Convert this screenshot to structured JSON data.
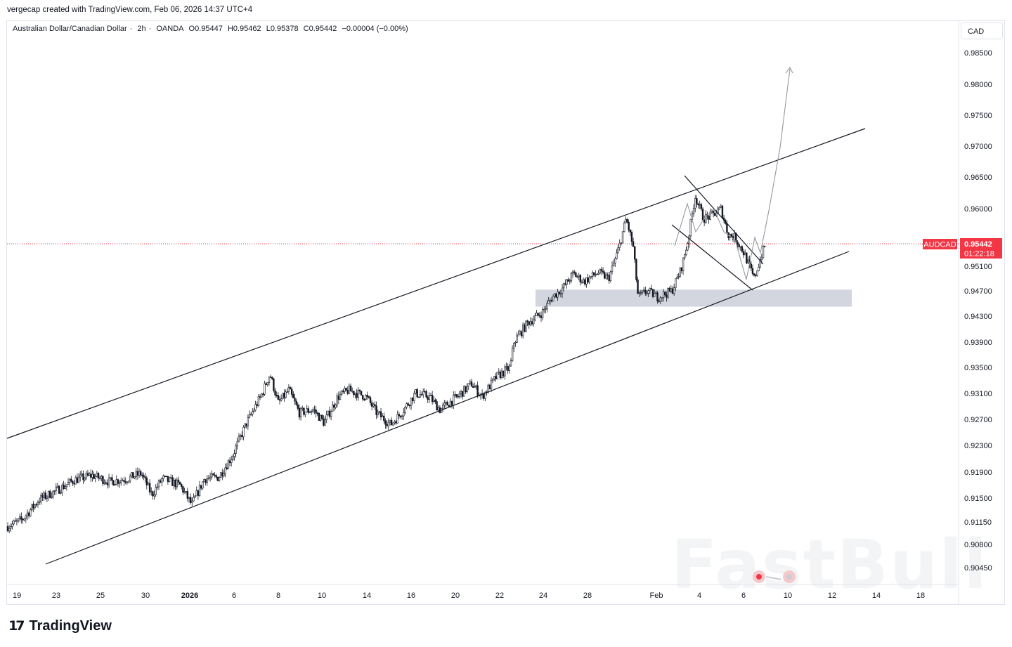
{
  "header": {
    "credit": "vergecap created with TradingView.com, Feb 06, 2026 14:37 UTC+4"
  },
  "legend": {
    "symbol": "Australian Dollar/Canadian Dollar",
    "interval": "2h",
    "broker": "OANDA",
    "open": "O0.95447",
    "high": "H0.95462",
    "low": "L0.95378",
    "close": "C0.95442",
    "change": "−0.00004 (−0.00%)"
  },
  "currency_button": "CAD",
  "price_tag": {
    "symbol": "AUDCAD",
    "price": "0.95442",
    "countdown": "01:22:18",
    "color": "#f23645"
  },
  "footer": {
    "brand": "TradingView"
  },
  "watermark": "FastBull",
  "chart_data": {
    "type": "candlestick",
    "title": "Australian Dollar/Canadian Dollar · 2h · OANDA",
    "y_axis_ticks": [
      0.985,
      0.98,
      0.975,
      0.97,
      0.965,
      0.96,
      0.951,
      0.947,
      0.943,
      0.939,
      0.935,
      0.931,
      0.927,
      0.923,
      0.919,
      0.915,
      0.9115,
      0.908,
      0.9045
    ],
    "y_axis_labels": [
      "0.98500",
      "0.98000",
      "0.97500",
      "0.97000",
      "0.96500",
      "0.96000",
      "0.95100",
      "0.94700",
      "0.94300",
      "0.93900",
      "0.93500",
      "0.93100",
      "0.92700",
      "0.92300",
      "0.91900",
      "0.91500",
      "0.91150",
      "0.90800",
      "0.90450"
    ],
    "x_axis_labels": [
      "19",
      "23",
      "25",
      "30",
      "2026",
      "6",
      "8",
      "10",
      "14",
      "16",
      "20",
      "22",
      "24",
      "28",
      "Feb",
      "4",
      "6",
      "10",
      "12",
      "14",
      "18"
    ],
    "current_price": 0.95442,
    "price_path": [
      [
        0,
        0.9108
      ],
      [
        20,
        0.9118
      ],
      [
        45,
        0.9148
      ],
      [
        70,
        0.9162
      ],
      [
        95,
        0.9178
      ],
      [
        120,
        0.9185
      ],
      [
        145,
        0.9175
      ],
      [
        170,
        0.918
      ],
      [
        190,
        0.9188
      ],
      [
        205,
        0.9155
      ],
      [
        220,
        0.918
      ],
      [
        245,
        0.917
      ],
      [
        262,
        0.914
      ],
      [
        280,
        0.918
      ],
      [
        300,
        0.9182
      ],
      [
        320,
        0.9215
      ],
      [
        340,
        0.9265
      ],
      [
        360,
        0.9305
      ],
      [
        373,
        0.934
      ],
      [
        385,
        0.9295
      ],
      [
        400,
        0.9315
      ],
      [
        415,
        0.928
      ],
      [
        435,
        0.9285
      ],
      [
        450,
        0.9265
      ],
      [
        470,
        0.9305
      ],
      [
        485,
        0.9315
      ],
      [
        510,
        0.9305
      ],
      [
        525,
        0.928
      ],
      [
        545,
        0.9262
      ],
      [
        560,
        0.928
      ],
      [
        580,
        0.931
      ],
      [
        600,
        0.9305
      ],
      [
        615,
        0.9285
      ],
      [
        640,
        0.9305
      ],
      [
        660,
        0.9325
      ],
      [
        675,
        0.9305
      ],
      [
        695,
        0.9335
      ],
      [
        715,
        0.935
      ],
      [
        720,
        0.939
      ],
      [
        740,
        0.942
      ],
      [
        760,
        0.9435
      ],
      [
        775,
        0.946
      ],
      [
        790,
        0.9475
      ],
      [
        805,
        0.9498
      ],
      [
        820,
        0.9485
      ],
      [
        840,
        0.95
      ],
      [
        855,
        0.949
      ],
      [
        870,
        0.954
      ],
      [
        880,
        0.9585
      ],
      [
        890,
        0.954
      ],
      [
        897,
        0.946
      ],
      [
        910,
        0.947
      ],
      [
        925,
        0.946
      ],
      [
        945,
        0.947
      ],
      [
        958,
        0.9505
      ],
      [
        968,
        0.955
      ],
      [
        978,
        0.962
      ],
      [
        990,
        0.9585
      ],
      [
        1000,
        0.9588
      ],
      [
        1015,
        0.96
      ],
      [
        1025,
        0.956
      ],
      [
        1035,
        0.9555
      ],
      [
        1048,
        0.953
      ],
      [
        1062,
        0.949
      ],
      [
        1072,
        0.9525
      ],
      [
        1078,
        0.95442
      ]
    ],
    "annotations": {
      "ascending_channel": "parallel trendlines",
      "demand_zone": [
        0.9445,
        0.9472
      ],
      "bull_flag": "descending channel near top",
      "projection": "arrow pointing to ~0.983"
    }
  }
}
